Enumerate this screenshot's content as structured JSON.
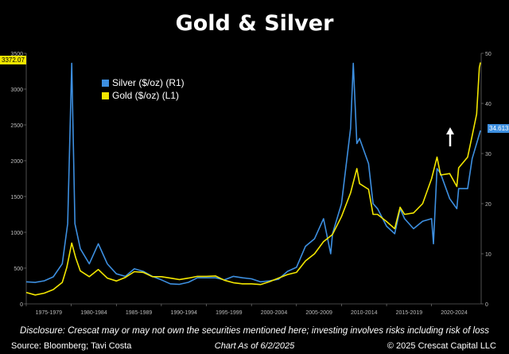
{
  "title": "Gold & Silver",
  "legend": [
    {
      "name": "Silver ($/oz) (R1)",
      "color": "#3d8fe0"
    },
    {
      "name": "Gold ($/oz) (L1)",
      "color": "#f2e600"
    }
  ],
  "last_values": {
    "gold": "3372.07",
    "silver": "34.613"
  },
  "disclaimer": "Disclosure: Crescat may or may not own the securities mentioned here; investing involves risks including risk of loss",
  "source": "Source: Bloomberg; Tavi Costa",
  "as_of": "Chart As of 6/2/2025",
  "copyright": "© 2025 Crescat Capital LLC",
  "colors": {
    "background": "#000000",
    "gold": "#f2e600",
    "silver": "#3d8fe0",
    "arrow": "#ffffff"
  },
  "chart_data": {
    "type": "line",
    "x_tick_labels": [
      "1975-1979",
      "1980-1984",
      "1985-1989",
      "1990-1994",
      "1995-1999",
      "2000-2004",
      "2005-2009",
      "2010-2014",
      "2015-2019",
      "2020-2024"
    ],
    "x_range": [
      1975,
      2025.5
    ],
    "left_axis": {
      "ticks": [
        0,
        500,
        1000,
        1500,
        2000,
        2500,
        3000,
        3500
      ],
      "range": [
        0,
        3500
      ]
    },
    "right_axis": {
      "ticks": [
        0,
        10,
        20,
        30,
        40,
        50
      ],
      "range": [
        0,
        50
      ]
    },
    "grid": false,
    "legend_position": "top-left",
    "series": [
      {
        "name": "Gold ($/oz) (L1)",
        "axis": "left",
        "color": "#f2e600",
        "x": [
          1975,
          1976,
          1977,
          1978,
          1979,
          1979.5,
          1980.05,
          1980.5,
          1981,
          1982,
          1983,
          1984,
          1985,
          1986,
          1987,
          1988,
          1989,
          1990,
          1991,
          1992,
          1993,
          1994,
          1995,
          1996,
          1997,
          1998,
          1999,
          2000,
          2001,
          2002,
          2003,
          2004,
          2005,
          2006,
          2007,
          2008,
          2009,
          2010,
          2011,
          2011.7,
          2012,
          2013,
          2013.5,
          2014,
          2015,
          2015.9,
          2016.5,
          2017,
          2018,
          2019,
          2020,
          2020.6,
          2021,
          2022,
          2022.8,
          2023,
          2024,
          2024.5,
          2025,
          2025.3,
          2025.42
        ],
        "y": [
          160,
          125,
          150,
          200,
          300,
          510,
          850,
          640,
          460,
          380,
          480,
          360,
          320,
          370,
          450,
          440,
          380,
          380,
          360,
          340,
          360,
          385,
          385,
          390,
          330,
          295,
          280,
          280,
          270,
          310,
          360,
          410,
          440,
          600,
          700,
          870,
          970,
          1220,
          1550,
          1890,
          1680,
          1600,
          1250,
          1250,
          1150,
          1050,
          1350,
          1250,
          1270,
          1400,
          1750,
          2050,
          1800,
          1820,
          1640,
          1900,
          2050,
          2350,
          2650,
          3300,
          3372
        ]
      },
      {
        "name": "Silver ($/oz) (R1)",
        "axis": "right",
        "color": "#3d8fe0",
        "x": [
          1975,
          1976,
          1977,
          1978,
          1979,
          1979.6,
          1980.05,
          1980.4,
          1981,
          1982,
          1983,
          1984,
          1985,
          1986,
          1987,
          1988,
          1989,
          1990,
          1991,
          1992,
          1993,
          1994,
          1995,
          1996,
          1997,
          1998,
          1999,
          2000,
          2001,
          2002,
          2003,
          2004,
          2005,
          2006,
          2007,
          2008,
          2008.8,
          2009,
          2010,
          2011,
          2011.3,
          2011.7,
          2012,
          2013,
          2013.5,
          2014,
          2015,
          2015.9,
          2016.5,
          2017,
          2018,
          2019,
          2020,
          2020.2,
          2020.6,
          2021,
          2022,
          2022.8,
          2023,
          2024,
          2024.5,
          2025,
          2025.42
        ],
        "y": [
          4.4,
          4.3,
          4.6,
          5.4,
          8,
          16,
          48,
          16,
          11,
          8,
          12,
          8,
          6,
          5.5,
          7,
          6.5,
          5.5,
          4.8,
          4,
          3.9,
          4.3,
          5.2,
          5.2,
          5.2,
          4.8,
          5.5,
          5.2,
          5,
          4.4,
          4.6,
          4.9,
          6.5,
          7.3,
          11.5,
          13,
          17,
          10,
          14,
          20,
          35,
          48,
          32,
          33,
          28,
          20,
          19,
          15.5,
          14,
          19,
          17,
          15,
          16.5,
          17,
          12,
          27,
          26,
          21,
          19,
          23,
          23,
          29,
          32,
          34.6
        ]
      }
    ]
  }
}
